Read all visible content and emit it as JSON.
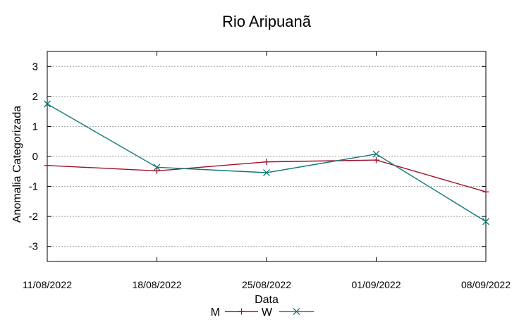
{
  "chart_data": {
    "type": "line",
    "title": "Rio Aripuanã",
    "xlabel": "Data",
    "ylabel": "Anomalia Categorizada",
    "categories": [
      "11/08/2022",
      "18/08/2022",
      "25/08/2022",
      "01/09/2022",
      "08/09/2022"
    ],
    "yticks": [
      "3",
      "2",
      "1",
      "0",
      "-1",
      "-2",
      "-3"
    ],
    "ylim": [
      -3.5,
      3.5
    ],
    "grid": true,
    "legend_position": "bottom-center",
    "series": [
      {
        "name": "M",
        "color": "#a0102a",
        "marker": "plus",
        "values": [
          -0.3,
          -0.48,
          -0.18,
          -0.12,
          -1.18
        ]
      },
      {
        "name": "W",
        "color": "#127a7a",
        "marker": "cross",
        "values": [
          1.75,
          -0.36,
          -0.54,
          0.08,
          -2.17
        ]
      }
    ]
  }
}
